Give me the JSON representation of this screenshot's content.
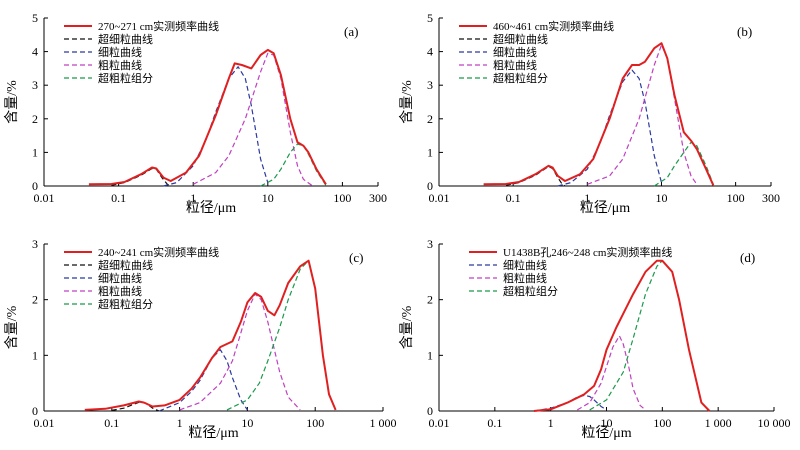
{
  "chart_data": [
    {
      "type": "line",
      "panel_label": "(a)",
      "xlabel": "粒径/μm",
      "ylabel": "含量/%",
      "x_scale": "log",
      "xlim": [
        0.01,
        300
      ],
      "ylim": [
        0,
        5
      ],
      "x_ticks": [
        0.01,
        0.1,
        1,
        10,
        100,
        300
      ],
      "x_tick_labels": [
        "0.01",
        "0.1",
        "1",
        "10",
        "100",
        "300"
      ],
      "y_ticks": [
        0,
        1,
        2,
        3,
        4,
        5
      ],
      "y_tick_labels": [
        "0",
        "1",
        "2",
        "3",
        "4",
        "5"
      ],
      "legend_position": "top-left",
      "series": [
        {
          "name": "270~271 cm实测频率曲线",
          "color": "#e02020",
          "style": "solid",
          "x": [
            0.04,
            0.08,
            0.12,
            0.2,
            0.28,
            0.32,
            0.4,
            0.5,
            0.8,
            1.2,
            2,
            3,
            3.6,
            4.5,
            6,
            8,
            10,
            12,
            15,
            20,
            25,
            30,
            35,
            45,
            60
          ],
          "y": [
            0.05,
            0.06,
            0.12,
            0.35,
            0.55,
            0.52,
            0.25,
            0.15,
            0.4,
            0.9,
            2.1,
            3.2,
            3.65,
            3.6,
            3.5,
            3.9,
            4.05,
            3.95,
            3.3,
            2.0,
            1.3,
            1.2,
            1.0,
            0.5,
            0.05
          ]
        },
        {
          "name": "超细粒曲线",
          "color": "#111111",
          "style": "dashed",
          "x": [
            0.08,
            0.12,
            0.2,
            0.28,
            0.32,
            0.38,
            0.45,
            0.5
          ],
          "y": [
            0.02,
            0.1,
            0.32,
            0.52,
            0.5,
            0.25,
            0.05,
            0
          ]
        },
        {
          "name": "细粒曲线",
          "color": "#2b3a9e",
          "style": "dashed",
          "x": [
            0.4,
            0.6,
            1,
            1.5,
            2,
            3,
            4,
            5,
            6,
            8,
            10
          ],
          "y": [
            0,
            0.1,
            0.6,
            1.4,
            2.2,
            3.2,
            3.55,
            3.2,
            2.4,
            0.8,
            0.1
          ]
        },
        {
          "name": "粗粒曲线",
          "color": "#c040c0",
          "style": "dashed",
          "x": [
            1,
            2,
            3,
            5,
            8,
            10,
            12,
            15,
            20,
            25,
            30,
            40
          ],
          "y": [
            0.05,
            0.4,
            0.9,
            2.0,
            3.4,
            3.95,
            3.9,
            3.2,
            1.6,
            0.6,
            0.2,
            0
          ]
        },
        {
          "name": "超粗粒组分",
          "color": "#1a9a4a",
          "style": "dashed",
          "x": [
            8,
            12,
            15,
            20,
            25,
            30,
            35,
            45,
            60
          ],
          "y": [
            0,
            0.2,
            0.5,
            1.0,
            1.25,
            1.2,
            0.95,
            0.45,
            0.02
          ]
        }
      ]
    },
    {
      "type": "line",
      "panel_label": "(b)",
      "xlabel": "粒径/μm",
      "ylabel": "含量/%",
      "x_scale": "log",
      "xlim": [
        0.01,
        300
      ],
      "ylim": [
        0,
        5
      ],
      "x_ticks": [
        0.01,
        0.1,
        1,
        10,
        100,
        300
      ],
      "x_tick_labels": [
        "0.01",
        "0.1",
        "1",
        "10",
        "100",
        "300"
      ],
      "y_ticks": [
        0,
        1,
        2,
        3,
        4,
        5
      ],
      "y_tick_labels": [
        "0",
        "1",
        "2",
        "3",
        "4",
        "5"
      ],
      "legend_position": "top-left",
      "series": [
        {
          "name": "460~461 cm实测频率曲线",
          "color": "#e02020",
          "style": "solid",
          "x": [
            0.04,
            0.08,
            0.12,
            0.2,
            0.3,
            0.34,
            0.4,
            0.5,
            0.8,
            1.2,
            2,
            3,
            4,
            5,
            6,
            8,
            10,
            12,
            15,
            20,
            25,
            30,
            40,
            50
          ],
          "y": [
            0.05,
            0.06,
            0.12,
            0.35,
            0.6,
            0.55,
            0.3,
            0.15,
            0.35,
            0.8,
            2.0,
            3.2,
            3.6,
            3.6,
            3.7,
            4.1,
            4.25,
            3.8,
            2.7,
            1.6,
            1.35,
            1.1,
            0.5,
            0.02
          ]
        },
        {
          "name": "超细粒曲线",
          "color": "#111111",
          "style": "dashed",
          "x": [
            0.08,
            0.12,
            0.2,
            0.3,
            0.34,
            0.4,
            0.45,
            0.5
          ],
          "y": [
            0.02,
            0.1,
            0.32,
            0.58,
            0.52,
            0.25,
            0.08,
            0
          ]
        },
        {
          "name": "细粒曲线",
          "color": "#2b3a9e",
          "style": "dashed",
          "x": [
            0.4,
            0.6,
            1,
            1.5,
            2,
            3,
            4,
            5,
            6,
            8,
            10
          ],
          "y": [
            0,
            0.1,
            0.5,
            1.3,
            2.1,
            3.1,
            3.45,
            3.2,
            2.5,
            0.9,
            0.1
          ]
        },
        {
          "name": "粗粒曲线",
          "color": "#c040c0",
          "style": "dashed",
          "x": [
            1,
            2,
            3,
            5,
            8,
            10,
            12,
            15,
            20,
            25,
            30
          ],
          "y": [
            0.05,
            0.3,
            0.8,
            2.0,
            3.6,
            4.2,
            3.8,
            2.6,
            1.0,
            0.3,
            0.05
          ]
        },
        {
          "name": "超粗粒组分",
          "color": "#1a9a4a",
          "style": "dashed",
          "x": [
            8,
            12,
            15,
            20,
            25,
            30,
            40,
            50
          ],
          "y": [
            0,
            0.25,
            0.6,
            1.0,
            1.3,
            1.2,
            0.6,
            0.05
          ]
        }
      ]
    },
    {
      "type": "line",
      "panel_label": "(c)",
      "xlabel": "粒径/μm",
      "ylabel": "含量/%",
      "x_scale": "log",
      "xlim": [
        0.01,
        1000
      ],
      "ylim": [
        0,
        3
      ],
      "x_ticks": [
        0.01,
        0.1,
        1,
        10,
        100,
        1000
      ],
      "x_tick_labels": [
        "0.01",
        "0.1",
        "1",
        "10",
        "100",
        "1 000"
      ],
      "y_ticks": [
        0,
        1,
        2,
        3
      ],
      "y_tick_labels": [
        "0",
        "1",
        "2",
        "3"
      ],
      "legend_position": "top-left",
      "series": [
        {
          "name": "240~241 cm实测频率曲线",
          "color": "#e02020",
          "style": "solid",
          "x": [
            0.04,
            0.08,
            0.15,
            0.25,
            0.3,
            0.4,
            0.6,
            1,
            1.5,
            2,
            3,
            4,
            6,
            8,
            10,
            13,
            16,
            20,
            25,
            30,
            40,
            60,
            80,
            100,
            130,
            160,
            200
          ],
          "y": [
            0.02,
            0.04,
            0.1,
            0.17,
            0.15,
            0.08,
            0.1,
            0.2,
            0.4,
            0.6,
            0.95,
            1.15,
            1.25,
            1.6,
            1.95,
            2.12,
            2.05,
            1.8,
            1.72,
            1.9,
            2.3,
            2.6,
            2.7,
            2.2,
            1.0,
            0.3,
            0.02
          ]
        },
        {
          "name": "超细粒曲线",
          "color": "#111111",
          "style": "dashed",
          "x": [
            0.1,
            0.15,
            0.22,
            0.27,
            0.32,
            0.4,
            0.5
          ],
          "y": [
            0.01,
            0.05,
            0.13,
            0.17,
            0.14,
            0.05,
            0
          ]
        },
        {
          "name": "细粒曲线",
          "color": "#2b3a9e",
          "style": "dashed",
          "x": [
            0.5,
            1,
            1.5,
            2,
            3,
            4,
            5,
            6,
            8,
            10
          ],
          "y": [
            0,
            0.15,
            0.35,
            0.55,
            0.95,
            1.1,
            0.9,
            0.6,
            0.2,
            0.02
          ]
        },
        {
          "name": "粗粒曲线",
          "color": "#c040c0",
          "style": "dashed",
          "x": [
            1,
            2,
            4,
            6,
            8,
            10,
            13,
            16,
            20,
            25,
            30,
            40,
            60
          ],
          "y": [
            0.02,
            0.15,
            0.5,
            0.9,
            1.4,
            1.8,
            2.1,
            2.0,
            1.6,
            1.1,
            0.7,
            0.25,
            0.02
          ]
        },
        {
          "name": "超粗粒组分",
          "color": "#1a9a4a",
          "style": "dashed",
          "x": [
            5,
            10,
            15,
            20,
            30,
            40,
            60,
            80,
            100,
            130,
            160,
            200
          ],
          "y": [
            0.02,
            0.2,
            0.5,
            0.9,
            1.5,
            2.0,
            2.55,
            2.7,
            2.2,
            1.0,
            0.3,
            0.02
          ]
        }
      ]
    },
    {
      "type": "line",
      "panel_label": "(d)",
      "xlabel": "粒径/μm",
      "ylabel": "含量/%",
      "x_scale": "log",
      "xlim": [
        0.01,
        10000
      ],
      "ylim": [
        0,
        3
      ],
      "x_ticks": [
        0.01,
        0.1,
        1,
        10,
        100,
        1000,
        10000
      ],
      "x_tick_labels": [
        "0.01",
        "0.1",
        "1",
        "10",
        "100",
        "1 000",
        "10 000"
      ],
      "y_ticks": [
        0,
        1,
        2,
        3
      ],
      "y_tick_labels": [
        "0",
        "1",
        "2",
        "3"
      ],
      "legend_position": "top-center",
      "series": [
        {
          "name": "U1438B孔246~248 cm实测频率曲线",
          "color": "#e02020",
          "style": "solid",
          "x": [
            0.5,
            1,
            2,
            4,
            6,
            8,
            10,
            15,
            20,
            30,
            50,
            80,
            100,
            150,
            200,
            300,
            500,
            700
          ],
          "y": [
            0,
            0.03,
            0.15,
            0.3,
            0.45,
            0.75,
            1.1,
            1.5,
            1.75,
            2.1,
            2.5,
            2.7,
            2.7,
            2.5,
            2.0,
            1.1,
            0.15,
            0
          ]
        },
        {
          "name": "细粒曲线",
          "color": "#2b3a9e",
          "style": "dashed",
          "x": [
            0.5,
            1,
            2,
            3,
            4,
            5,
            6,
            8,
            10
          ],
          "y": [
            0,
            0.05,
            0.15,
            0.25,
            0.28,
            0.26,
            0.2,
            0.08,
            0.02
          ]
        },
        {
          "name": "粗粒曲线",
          "color": "#c040c0",
          "style": "dashed",
          "x": [
            3,
            5,
            8,
            10,
            13,
            17,
            20,
            25,
            30,
            40,
            50
          ],
          "y": [
            0.02,
            0.15,
            0.5,
            0.8,
            1.15,
            1.35,
            1.2,
            0.8,
            0.4,
            0.1,
            0.02
          ]
        },
        {
          "name": "超粗粒组分",
          "color": "#1a9a4a",
          "style": "dashed",
          "x": [
            5,
            10,
            20,
            30,
            50,
            80,
            100,
            150,
            200,
            300,
            500,
            700
          ],
          "y": [
            0.02,
            0.2,
            0.7,
            1.3,
            2.1,
            2.6,
            2.7,
            2.5,
            2.0,
            1.1,
            0.15,
            0
          ]
        }
      ]
    }
  ]
}
